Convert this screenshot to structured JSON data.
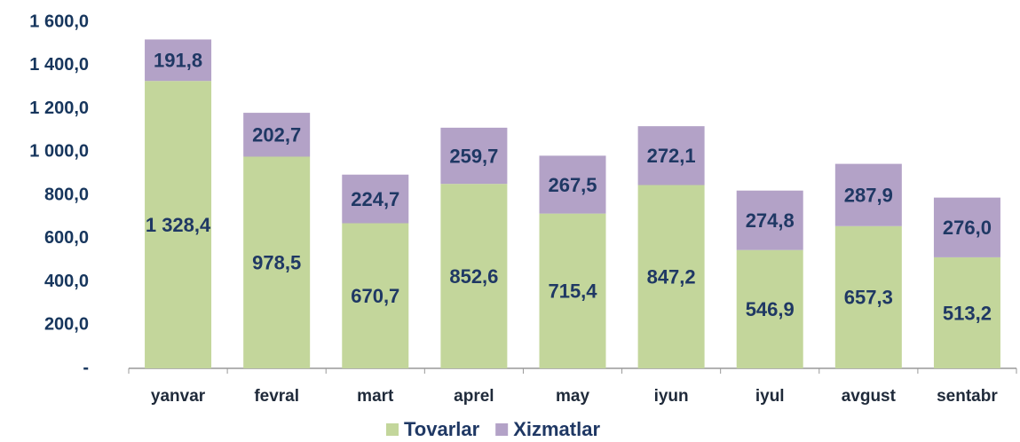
{
  "chart_data": {
    "type": "stacked_bar",
    "categories": [
      "yanvar",
      "fevral",
      "mart",
      "aprel",
      "may",
      "iyun",
      "iyul",
      "avgust",
      "sentabr"
    ],
    "series": [
      {
        "name": "Tovarlar",
        "color": "#c3d69b",
        "values": [
          1328.4,
          978.5,
          670.7,
          852.6,
          715.4,
          847.2,
          546.9,
          657.3,
          513.2
        ],
        "value_labels": [
          "1 328,4",
          "978,5",
          "670,7",
          "852,6",
          "715,4",
          "847,2",
          "546,9",
          "657,3",
          "513,2"
        ]
      },
      {
        "name": "Xizmatlar",
        "color": "#b3a2c7",
        "values": [
          191.8,
          202.7,
          224.7,
          259.7,
          267.5,
          272.1,
          274.8,
          287.9,
          276.0
        ],
        "value_labels": [
          "191,8",
          "202,7",
          "224,7",
          "259,7",
          "267,5",
          "272,1",
          "274,8",
          "287,9",
          "276,0"
        ]
      }
    ],
    "ylim": [
      0,
      1600
    ],
    "yticks": [
      {
        "value": 0,
        "label": "-"
      },
      {
        "value": 200,
        "label": "200,0"
      },
      {
        "value": 400,
        "label": "400,0"
      },
      {
        "value": 600,
        "label": "600,0"
      },
      {
        "value": 800,
        "label": "800,0"
      },
      {
        "value": 1000,
        "label": "1 000,0"
      },
      {
        "value": 1200,
        "label": "1 200,0"
      },
      {
        "value": 1400,
        "label": "1 400,0"
      },
      {
        "value": 1600,
        "label": "1 600,0"
      }
    ],
    "grid": false,
    "legend": "bottom"
  }
}
